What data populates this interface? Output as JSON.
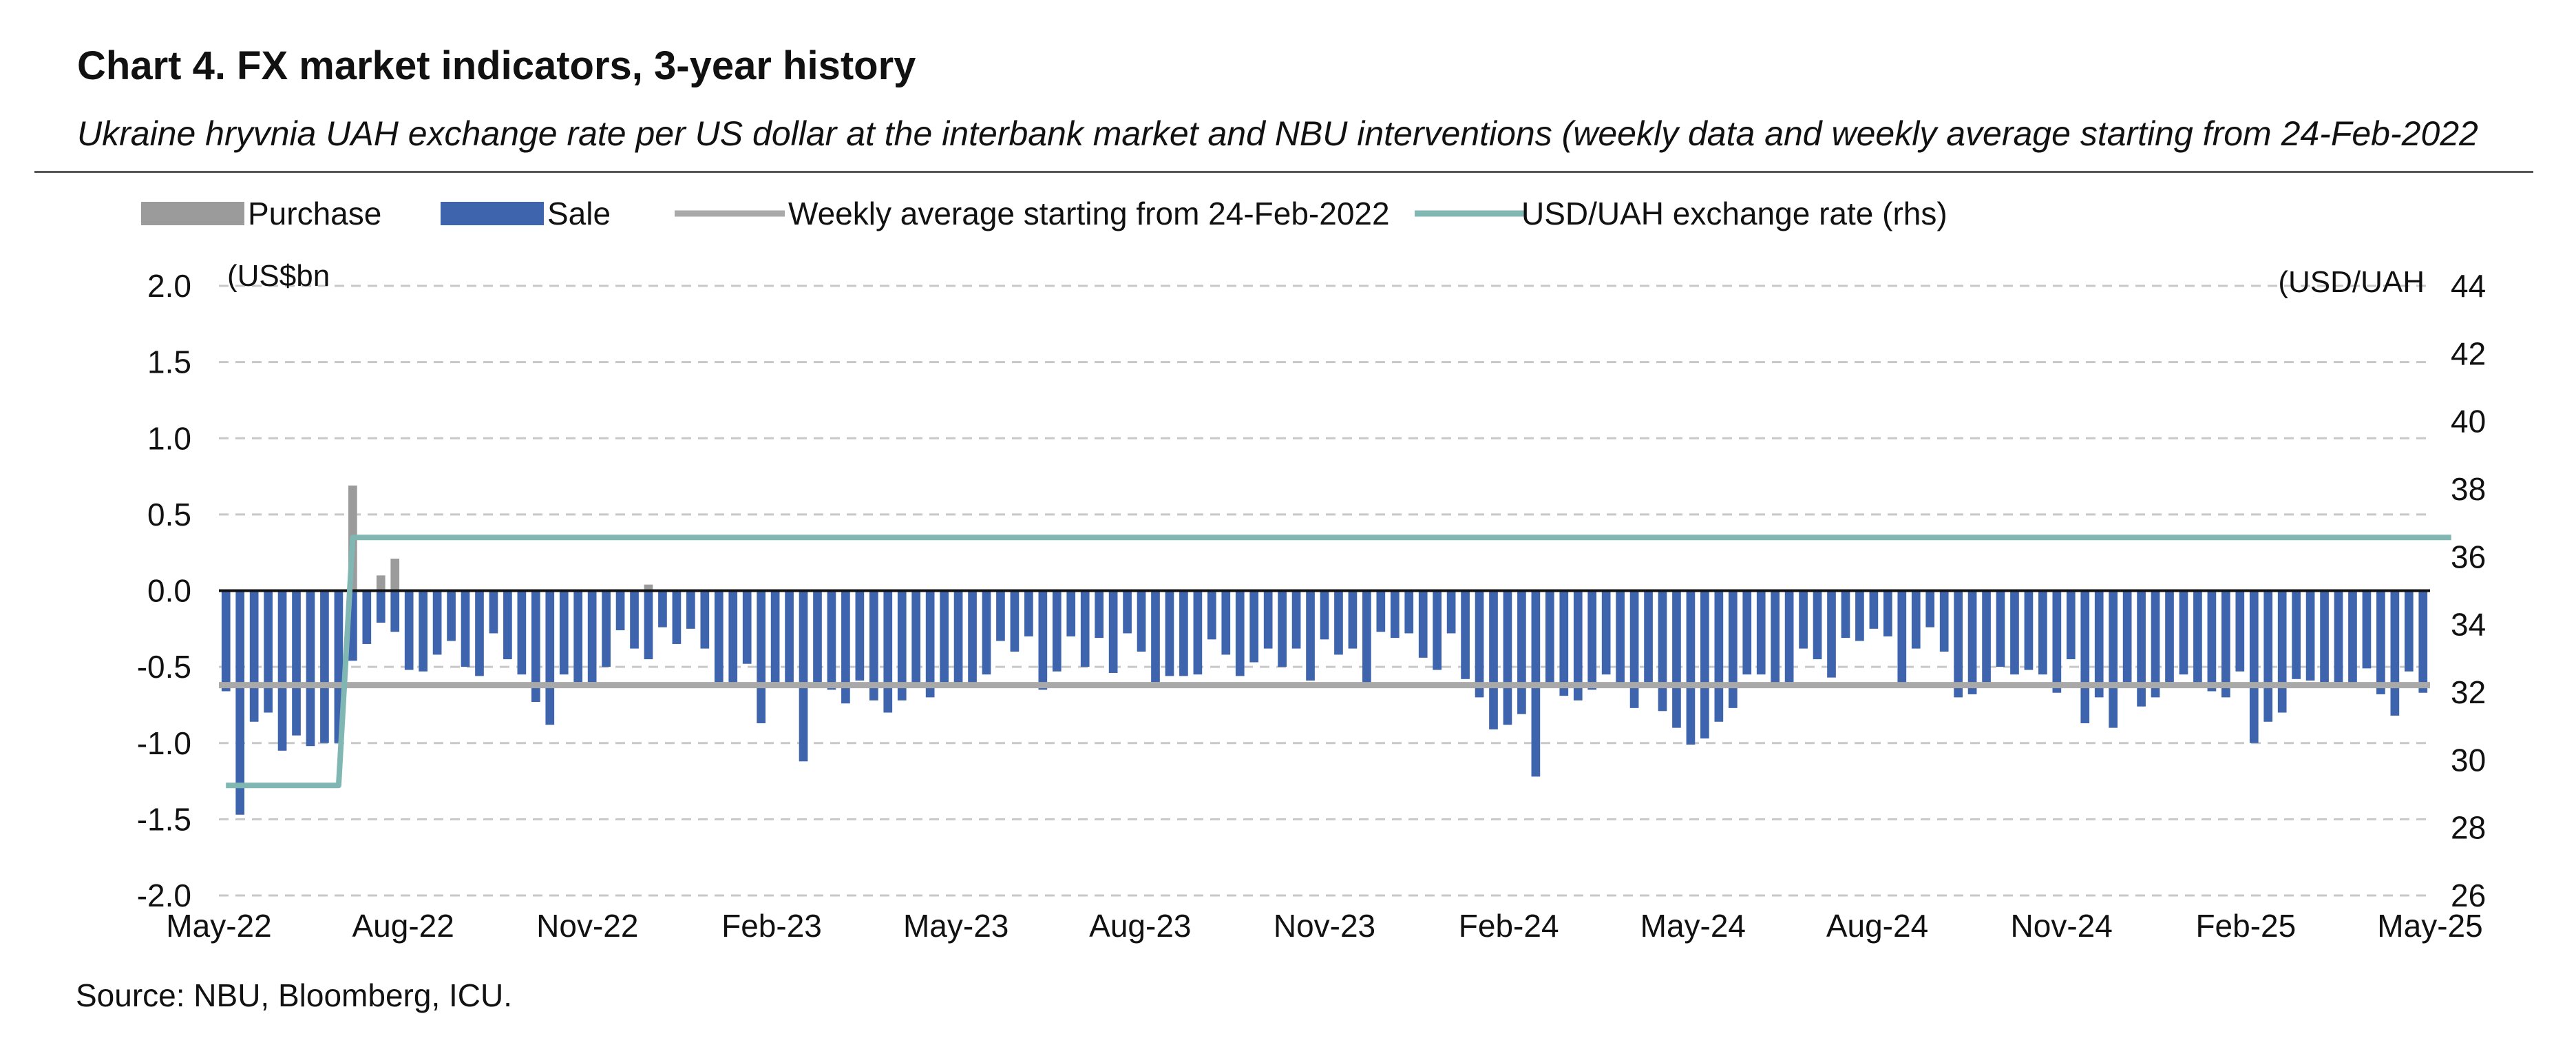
{
  "header": {
    "title": "Chart 4. FX market indicators, 3-year history",
    "subtitle": "Ukraine hryvnia UAH exchange rate per US dollar at the interbank market and NBU interventions (weekly data and weekly average starting from 24-Feb-2022"
  },
  "footer": {
    "source": "Source: NBU, Bloomberg, ICU."
  },
  "colors": {
    "purchase": "#9b9b9b",
    "sale": "#3d64ad",
    "average": "#a9a9a9",
    "rate": "#80b7b3",
    "grid": "#c8c8c8"
  },
  "chart_data": {
    "type": "bar",
    "legend": [
      "Purchase",
      "Sale",
      "Weekly average starting from 24-Feb-2022",
      "USD/UAH exchange rate (rhs)"
    ],
    "legend_position": "top",
    "ylabel_left": "(US$bn",
    "ylabel_right": "(USD/UAH",
    "ylim_left": [
      -2.0,
      2.0
    ],
    "ylim_right": [
      26,
      44
    ],
    "yticks_left": [
      "2.0",
      "1.5",
      "1.0",
      "0.5",
      "0.0",
      "-0.5",
      "-1.0",
      "-1.5",
      "-2.0"
    ],
    "yticks_right": [
      "44",
      "42",
      "40",
      "38",
      "36",
      "34",
      "32",
      "30",
      "28",
      "26"
    ],
    "xticks": [
      "May-22",
      "Aug-22",
      "Nov-22",
      "Feb-23",
      "May-23",
      "Aug-23",
      "Nov-23",
      "Feb-24",
      "May-24",
      "Aug-24",
      "Nov-24",
      "Feb-25",
      "May-25"
    ],
    "grid": true,
    "weeks": 157,
    "sale_bn": [
      -0.66,
      -1.47,
      -0.86,
      -0.8,
      -1.05,
      -0.95,
      -1.02,
      -1.0,
      -1.0,
      -0.46,
      -0.35,
      -0.21,
      -0.27,
      -0.52,
      -0.53,
      -0.42,
      -0.33,
      -0.5,
      -0.56,
      -0.28,
      -0.45,
      -0.55,
      -0.73,
      -0.88,
      -0.55,
      -0.6,
      -0.6,
      -0.5,
      -0.26,
      -0.38,
      -0.45,
      -0.24,
      -0.35,
      -0.25,
      -0.38,
      -0.6,
      -0.61,
      -0.48,
      -0.87,
      -0.6,
      -0.61,
      -1.12,
      -0.6,
      -0.65,
      -0.74,
      -0.59,
      -0.72,
      -0.8,
      -0.72,
      -0.61,
      -0.7,
      -0.6,
      -0.63,
      -0.62,
      -0.55,
      -0.33,
      -0.4,
      -0.3,
      -0.65,
      -0.53,
      -0.3,
      -0.5,
      -0.31,
      -0.54,
      -0.28,
      -0.4,
      -0.6,
      -0.56,
      -0.56,
      -0.55,
      -0.32,
      -0.42,
      -0.56,
      -0.47,
      -0.38,
      -0.5,
      -0.38,
      -0.59,
      -0.32,
      -0.42,
      -0.38,
      -0.61,
      -0.27,
      -0.31,
      -0.28,
      -0.44,
      -0.52,
      -0.28,
      -0.58,
      -0.7,
      -0.91,
      -0.88,
      -0.81,
      -1.22,
      -0.63,
      -0.69,
      -0.72,
      -0.65,
      -0.55,
      -0.62,
      -0.77,
      -0.6,
      -0.79,
      -0.9,
      -1.01,
      -0.97,
      -0.86,
      -0.77,
      -0.55,
      -0.55,
      -0.63,
      -0.6,
      -0.38,
      -0.45,
      -0.57,
      -0.31,
      -0.33,
      -0.25,
      -0.3,
      -0.62,
      -0.38,
      -0.24,
      -0.4,
      -0.7,
      -0.68,
      -0.6,
      -0.5,
      -0.55,
      -0.52,
      -0.55,
      -0.67,
      -0.45,
      -0.87,
      -0.7,
      -0.9,
      -0.6,
      -0.76,
      -0.7,
      -0.6,
      -0.55,
      -0.62,
      -0.66,
      -0.7,
      -0.53,
      -1.0,
      -0.86,
      -0.8,
      -0.58,
      -0.59,
      -0.6,
      -0.6,
      -0.62,
      -0.51,
      -0.68,
      -0.82,
      -0.53,
      -0.67
    ],
    "purchase_bn": [
      0,
      0,
      0,
      0,
      0,
      0,
      0,
      0,
      0,
      0.69,
      0,
      0.1,
      0.21,
      0,
      0,
      0,
      0,
      0,
      0,
      0,
      0,
      0,
      0,
      0,
      0,
      0,
      0,
      0,
      0,
      0,
      0.04,
      0,
      0,
      0,
      0,
      0,
      0,
      0,
      0,
      0,
      0,
      0,
      0,
      0,
      0,
      0,
      0,
      0,
      0,
      0,
      0,
      0,
      0,
      0,
      0,
      0,
      0,
      0,
      0,
      0,
      0,
      0,
      0,
      0,
      0,
      0,
      0,
      0,
      0,
      0,
      0,
      0,
      0,
      0,
      0,
      0,
      0,
      0,
      0,
      0,
      0,
      0,
      0,
      0,
      0,
      0,
      0,
      0,
      0,
      0,
      0,
      0,
      0,
      0,
      0,
      0,
      0,
      0,
      0,
      0,
      0,
      0,
      0,
      0,
      0,
      0,
      0,
      0,
      0,
      0,
      0,
      0,
      0,
      0,
      0,
      0,
      0,
      0,
      0,
      0,
      0,
      0,
      0,
      0,
      0,
      0,
      0,
      0,
      0,
      0,
      0,
      0,
      0,
      0,
      0,
      0,
      0,
      0,
      0,
      0,
      0,
      0,
      0,
      0,
      0,
      0,
      0,
      0,
      0,
      0,
      0,
      0,
      0,
      0,
      0,
      0,
      0
    ],
    "weekly_average_bn": -0.62,
    "usd_uah": [
      29.25,
      29.25,
      29.25,
      29.25,
      29.25,
      29.25,
      29.25,
      29.25,
      29.25,
      36.57,
      36.57,
      36.57,
      36.57,
      36.57,
      36.57,
      36.57,
      36.57,
      36.57,
      36.57,
      36.57,
      36.57,
      36.57,
      36.57,
      36.57,
      36.57,
      36.57,
      36.57,
      36.57,
      36.57,
      36.57,
      36.57,
      36.57,
      36.57,
      36.57,
      36.57,
      36.57,
      36.57,
      36.57,
      36.57,
      36.57,
      36.57,
      36.57,
      36.57,
      36.57,
      36.57,
      36.57,
      36.57,
      36.57,
      36.57,
      36.57,
      36.57,
      36.57,
      36.57,
      36.57,
      36.57,
      36.57,
      36.57,
      36.57,
      36.57,
      36.57,
      36.57,
      36.57,
      36.57,
      36.57,
      36.57,
      36.57,
      36.57,
      36.57,
      36.57,
      36.57,
      36.57,
      36.57,
      36.57,
      36.57,
      36.57,
      36.57,
      36.57,
      36.57,
      36.57,
      36.57,
      36.57,
      36.57,
      36.57,
      36.57,
      36.57,
      36.57,
      36.57,
      36.57,
      36.57,
      36.57,
      36.57,
      36.57,
      36.57,
      36.57,
      36.57,
      36.57,
      36.57,
      36.57,
      36.57,
      36.57,
      36.57,
      36.57,
      36.57,
      36.57,
      36.57,
      36.57,
      36.57,
      36.57,
      36.57,
      36.57,
      36.57,
      36.57,
      36.57,
      36.57,
      36.57,
      36.57,
      36.57,
      36.57,
      36.57,
      36.57,
      36.57,
      36.57,
      36.57,
      36.57,
      36.57,
      36.57,
      36.57,
      36.57,
      36.57,
      36.57,
      36.57,
      36.57,
      36.57,
      36.57,
      36.57,
      36.57,
      36.57,
      36.57,
      36.57,
      36.57,
      36.57,
      36.57,
      36.57,
      36.57,
      36.57,
      36.57,
      36.57,
      36.57,
      36.57,
      36.57,
      36.57,
      36.57,
      36.57,
      36.57,
      36.57,
      36.57,
      36.57,
      36.57,
      36.57
    ],
    "usd_uah_note": ""
  }
}
